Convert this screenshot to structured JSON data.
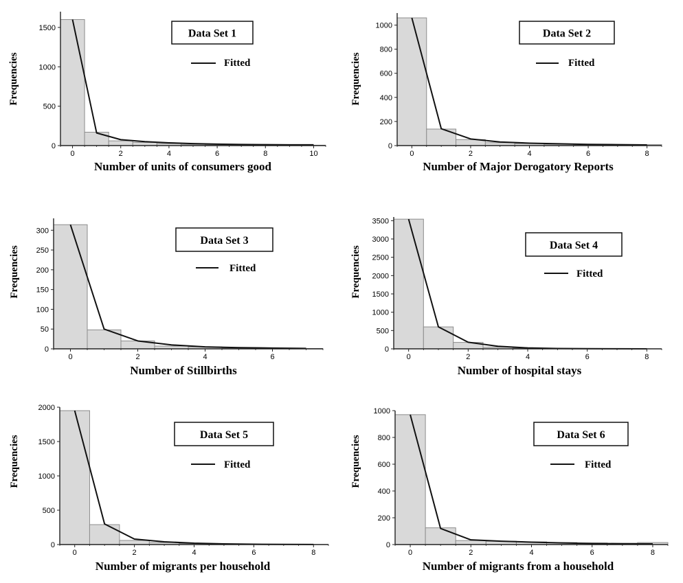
{
  "chart_data": [
    {
      "type": "bar",
      "title": "Data Set 1",
      "xlabel": "Number of units of consumers good",
      "ylabel": "Frequencies",
      "legend": [
        "Fitted"
      ],
      "x": [
        0,
        1,
        2,
        3,
        4,
        5,
        6,
        7,
        8,
        9,
        10
      ],
      "observed": [
        1600,
        170,
        60,
        40,
        25,
        15,
        10,
        8,
        6,
        5,
        5
      ],
      "fitted": [
        1600,
        160,
        75,
        50,
        35,
        25,
        18,
        14,
        12,
        10,
        10
      ],
      "xlim": [
        -0.5,
        10.5
      ],
      "ylim": [
        0,
        1700
      ],
      "xticks": [
        0,
        2,
        4,
        6,
        8,
        10
      ],
      "yticks": [
        0,
        500,
        1000,
        1500
      ]
    },
    {
      "type": "bar",
      "title": "Data Set 2",
      "xlabel": "Number of Major Derogatory Reports",
      "ylabel": "Frequencies",
      "legend": [
        "Fitted"
      ],
      "x": [
        0,
        1,
        2,
        3,
        4,
        5,
        6,
        7,
        8
      ],
      "observed": [
        1060,
        137,
        50,
        24,
        17,
        11,
        5,
        6,
        8
      ],
      "fitted": [
        1060,
        140,
        55,
        30,
        20,
        15,
        10,
        8,
        6
      ],
      "xlim": [
        -0.5,
        8.5
      ],
      "ylim": [
        0,
        1100
      ],
      "xticks": [
        0,
        2,
        4,
        6,
        8
      ],
      "yticks": [
        0,
        200,
        400,
        600,
        800,
        1000
      ]
    },
    {
      "type": "bar",
      "title": "Data Set 3",
      "xlabel": "Number of Stillbirths",
      "ylabel": "Frequencies",
      "legend": [
        "Fitted"
      ],
      "x": [
        0,
        1,
        2,
        3,
        4,
        5,
        6,
        7
      ],
      "observed": [
        314,
        48,
        20,
        7,
        5,
        2,
        1,
        1
      ],
      "fitted": [
        314,
        50,
        20,
        10,
        5,
        3,
        2,
        1
      ],
      "xlim": [
        -0.5,
        7.5
      ],
      "ylim": [
        0,
        330
      ],
      "xticks": [
        0,
        2,
        4,
        6
      ],
      "yticks": [
        0,
        50,
        100,
        150,
        200,
        250,
        300
      ]
    },
    {
      "type": "bar",
      "title": "Data Set 4",
      "xlabel": "Number of hospital stays",
      "ylabel": "Frequencies",
      "legend": [
        "Fitted"
      ],
      "x": [
        0,
        1,
        2,
        3,
        4,
        5,
        6,
        7,
        8
      ],
      "observed": [
        3541,
        599,
        176,
        48,
        20,
        10,
        5,
        2,
        1
      ],
      "fitted": [
        3541,
        600,
        180,
        70,
        25,
        10,
        5,
        2,
        1
      ],
      "xlim": [
        -0.5,
        8.5
      ],
      "ylim": [
        0,
        3600
      ],
      "xticks": [
        0,
        2,
        4,
        6,
        8
      ],
      "yticks": [
        0,
        500,
        1000,
        1500,
        2000,
        2500,
        3000,
        3500
      ]
    },
    {
      "type": "bar",
      "title": "Data Set 5",
      "xlabel": "Number of migrants per household",
      "ylabel": "Frequencies",
      "legend": [
        "Fitted"
      ],
      "x": [
        0,
        1,
        2,
        3,
        4,
        5,
        6,
        7,
        8
      ],
      "observed": [
        1950,
        290,
        60,
        30,
        15,
        8,
        4,
        2,
        1
      ],
      "fitted": [
        1950,
        300,
        80,
        40,
        20,
        10,
        5,
        2,
        1
      ],
      "xlim": [
        -0.5,
        8.5
      ],
      "ylim": [
        0,
        2000
      ],
      "xticks": [
        0,
        2,
        4,
        6,
        8
      ],
      "yticks": [
        0,
        500,
        1000,
        1500,
        2000
      ]
    },
    {
      "type": "bar",
      "title": "Data Set 6",
      "xlabel": "Number of migrants from a household",
      "ylabel": "Frequencies",
      "legend": [
        "Fitted"
      ],
      "x": [
        0,
        1,
        2,
        3,
        4,
        5,
        6,
        7,
        8
      ],
      "observed": [
        970,
        125,
        30,
        25,
        20,
        15,
        12,
        10,
        15
      ],
      "fitted": [
        970,
        120,
        35,
        25,
        18,
        12,
        8,
        6,
        5
      ],
      "xlim": [
        -0.5,
        8.5
      ],
      "ylim": [
        0,
        1000
      ],
      "xticks": [
        0,
        2,
        4,
        6,
        8
      ],
      "yticks": [
        0,
        200,
        400,
        600,
        800,
        1000
      ]
    }
  ],
  "colors": {
    "bar_fill": "#d9d9d9",
    "bar_stroke": "#8c8c8c",
    "line": "#111111",
    "axis": "#222222"
  }
}
